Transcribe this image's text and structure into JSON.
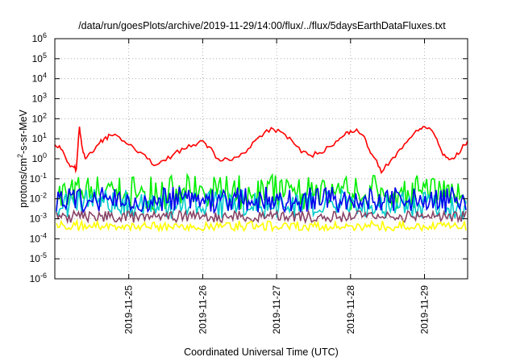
{
  "chart_data": {
    "type": "line",
    "title": "/data/run/goesPlots/archive/2019-11-29/14:00/flux/../flux/5daysEarthDataFluxes.txt",
    "xlabel": "Coordinated Universal Time (UTC)",
    "ylabel": {
      "prefix": "protons/cm",
      "exp": "2",
      "suffix": "-s-sr-MeV"
    },
    "y_scale": "log",
    "ylim_exp": [
      -6,
      6
    ],
    "y_ticks": [
      {
        "base": "10",
        "exp": "6"
      },
      {
        "base": "10",
        "exp": "5"
      },
      {
        "base": "10",
        "exp": "4"
      },
      {
        "base": "10",
        "exp": "3"
      },
      {
        "base": "10",
        "exp": "2"
      },
      {
        "base": "10",
        "exp": "1"
      },
      {
        "base": "10",
        "exp": "0"
      },
      {
        "base": "10",
        "exp": "-1"
      },
      {
        "base": "10",
        "exp": "-2"
      },
      {
        "base": "10",
        "exp": "-3"
      },
      {
        "base": "10",
        "exp": "-4"
      },
      {
        "base": "10",
        "exp": "-5"
      },
      {
        "base": "10",
        "exp": "-6"
      }
    ],
    "xlim": [
      "2019-11-24T00:00",
      "2019-11-29T14:00"
    ],
    "x_ticks": [
      "2019-11-25",
      "2019-11-26",
      "2019-11-27",
      "2019-11-28",
      "2019-11-29"
    ],
    "grid": true,
    "series": [
      {
        "color": "#ff0000",
        "x": [
          "2019-11-24T00:00",
          "2019-11-24T02:00",
          "2019-11-24T04:00",
          "2019-11-24T06:00",
          "2019-11-24T07:00",
          "2019-11-24T08:00",
          "2019-11-24T09:00",
          "2019-11-24T10:00",
          "2019-11-24T12:00",
          "2019-11-24T14:00",
          "2019-11-24T16:00",
          "2019-11-24T18:00",
          "2019-11-24T21:00",
          "2019-11-25T00:00",
          "2019-11-25T03:00",
          "2019-11-25T06:00",
          "2019-11-25T09:00",
          "2019-11-25T12:00",
          "2019-11-25T15:00",
          "2019-11-25T18:00",
          "2019-11-25T21:00",
          "2019-11-26T00:00",
          "2019-11-26T02:00",
          "2019-11-26T05:00",
          "2019-11-26T08:00",
          "2019-11-26T11:00",
          "2019-11-26T14:00",
          "2019-11-26T17:00",
          "2019-11-26T20:00",
          "2019-11-26T23:00",
          "2019-11-27T02:00",
          "2019-11-27T05:00",
          "2019-11-27T08:00",
          "2019-11-27T11:00",
          "2019-11-27T14:00",
          "2019-11-27T17:00",
          "2019-11-27T20:00",
          "2019-11-27T22:00",
          "2019-11-28T00:00",
          "2019-11-28T02:00",
          "2019-11-28T04:00",
          "2019-11-28T06:00",
          "2019-11-28T08:00",
          "2019-11-28T10:00",
          "2019-11-28T13:00",
          "2019-11-28T16:00",
          "2019-11-28T19:00",
          "2019-11-28T22:00",
          "2019-11-29T00:00",
          "2019-11-29T02:00",
          "2019-11-29T04:00",
          "2019-11-29T06:00",
          "2019-11-29T08:00",
          "2019-11-29T10:00",
          "2019-11-29T12:00",
          "2019-11-29T14:00"
        ],
        "y": [
          5,
          3,
          0.7,
          0.4,
          0.3,
          40,
          3,
          1,
          2,
          5,
          10,
          15,
          12,
          5,
          2,
          1,
          0.5,
          0.8,
          2,
          3,
          5,
          8,
          4,
          1,
          1,
          1.2,
          2,
          8,
          20,
          30,
          20,
          8,
          2,
          1.5,
          2,
          4,
          8,
          15,
          25,
          30,
          15,
          3,
          1,
          0.2,
          0.8,
          3,
          10,
          25,
          40,
          30,
          10,
          1.5,
          0.9,
          1.2,
          3,
          8
        ]
      },
      {
        "color": "#00ee00",
        "noise_band_exp": [
          -2.6,
          -0.8
        ],
        "center_exp": -1.8
      },
      {
        "color": "#00cccc",
        "noise_band_exp": [
          -3.0,
          -1.5
        ],
        "center_exp": -2.4
      },
      {
        "color": "#0000ee",
        "noise_band_exp": [
          -2.7,
          -1.4
        ],
        "center_exp": -2.1
      },
      {
        "color": "#884466",
        "noise_band_exp": [
          -3.2,
          -2.6
        ],
        "center_exp": -2.9
      },
      {
        "color": "#ffff00",
        "noise_band_exp": [
          -3.6,
          -3.1
        ],
        "center_exp": -3.4
      }
    ]
  }
}
